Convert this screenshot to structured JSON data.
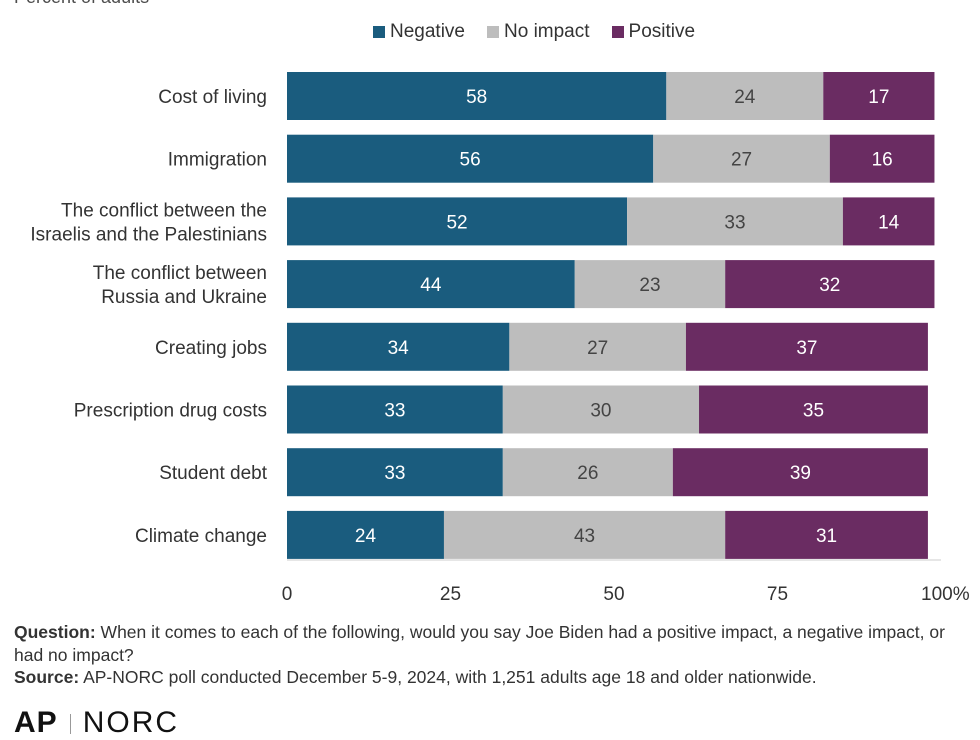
{
  "subtitle": "Percent of adults",
  "legend": [
    {
      "label": "Negative",
      "color": "#1a5c7e"
    },
    {
      "label": "No impact",
      "color": "#bdbdbd"
    },
    {
      "label": "Positive",
      "color": "#6a2c62"
    }
  ],
  "chart_data": {
    "type": "bar",
    "orientation": "horizontal",
    "stacked": true,
    "categories": [
      [
        "Cost of living"
      ],
      [
        "Immigration"
      ],
      [
        "The conflict between the",
        "Israelis and the Palestinians"
      ],
      [
        "The conflict between",
        "Russia and Ukraine"
      ],
      [
        "Creating jobs"
      ],
      [
        "Prescription drug costs"
      ],
      [
        "Student debt"
      ],
      [
        "Climate change"
      ]
    ],
    "series": [
      {
        "name": "Negative",
        "color": "#1a5c7e",
        "values": [
          58,
          56,
          52,
          44,
          34,
          33,
          33,
          24
        ]
      },
      {
        "name": "No impact",
        "color": "#bdbdbd",
        "values": [
          24,
          27,
          33,
          23,
          27,
          30,
          26,
          43
        ]
      },
      {
        "name": "Positive",
        "color": "#6a2c62",
        "values": [
          17,
          16,
          14,
          32,
          37,
          35,
          39,
          31
        ]
      }
    ],
    "xlim": [
      0,
      100
    ],
    "xticks": [
      "0",
      "25",
      "50",
      "75",
      "100%"
    ],
    "legend_position": "top"
  },
  "notes": {
    "question_label": "Question:",
    "question_text": "When it comes to each of the following, would you say Joe Biden had a positive impact, a negative impact, or had no impact?",
    "source_label": "Source:",
    "source_text": "AP-NORC poll conducted December 5-9, 2024, with 1,251 adults age 18 and older nationwide."
  },
  "logos": {
    "ap": "AP",
    "norc": "NORC"
  }
}
